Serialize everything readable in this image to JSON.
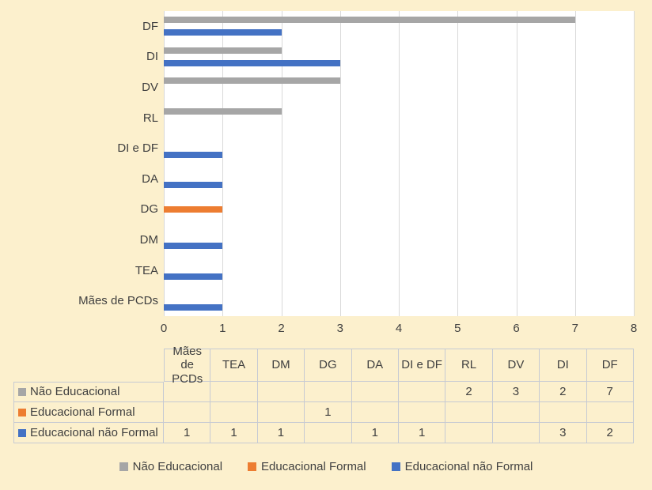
{
  "palette": {
    "background": "#FCF0CD",
    "plot_background": "#FFFFFF",
    "gridline": "#D9D9D9",
    "table_border": "#C6CAD3",
    "text": "#404040",
    "series_gray": "#A6A6A6",
    "series_orange": "#ED7D31",
    "series_blue": "#4472C4"
  },
  "chart_data": {
    "type": "bar",
    "orientation": "horizontal",
    "title": "",
    "xlabel": "",
    "ylabel": "",
    "xlim": [
      0,
      8
    ],
    "xticks": [
      0,
      1,
      2,
      3,
      4,
      5,
      6,
      7,
      8
    ],
    "grid": true,
    "legend_position": "bottom",
    "data_table": "shown below chart with legend keys",
    "categories": [
      "Mães de PCDs",
      "TEA",
      "DM",
      "DG",
      "DA",
      "DI e DF",
      "RL",
      "DV",
      "DI",
      "DF"
    ],
    "category_display_order": "bottom-to-top (DF at top of plot)",
    "series": [
      {
        "name": "Não Educacional",
        "color": "#A6A6A6",
        "values": [
          null,
          null,
          null,
          null,
          null,
          null,
          2,
          3,
          2,
          7
        ]
      },
      {
        "name": "Educacional Formal",
        "color": "#ED7D31",
        "values": [
          null,
          null,
          null,
          1,
          null,
          null,
          null,
          null,
          null,
          null
        ]
      },
      {
        "name": "Educacional não Formal",
        "color": "#4472C4",
        "values": [
          1,
          1,
          1,
          null,
          1,
          1,
          null,
          null,
          3,
          2
        ]
      }
    ]
  }
}
